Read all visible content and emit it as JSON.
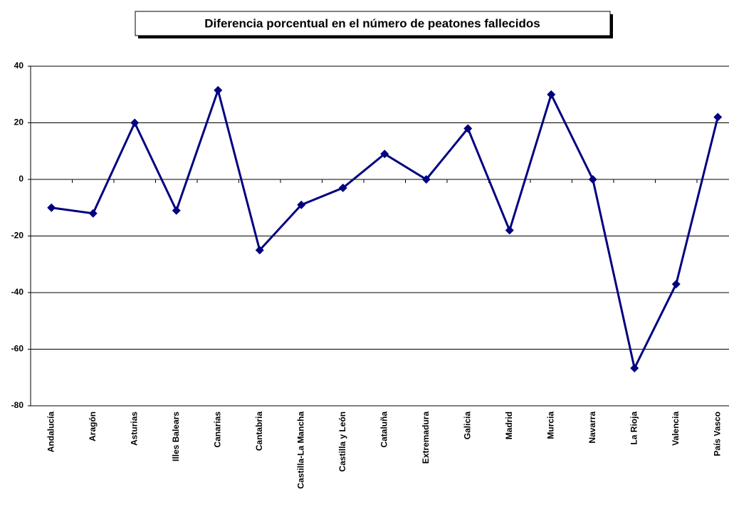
{
  "chart_data": {
    "type": "line",
    "title": "Diferencia porcentual en el número de peatones fallecidos",
    "categories": [
      "Andalucía",
      "Aragón",
      "Asturias",
      "Illes Balears",
      "Canarias",
      "Cantabria",
      "Castilla-La Mancha",
      "Castilla y León",
      "Cataluña",
      "Extremadura",
      "Galicia",
      "Madrid",
      "Murcia",
      "Navarra",
      "La Rioja",
      "Valencia",
      "País Vasco"
    ],
    "values": [
      -10,
      -12,
      20,
      -11,
      31.5,
      -25,
      -9,
      -3,
      9,
      0,
      18,
      -18,
      30,
      0,
      -66.7,
      -37,
      22
    ],
    "color": "#000080",
    "ylim": [
      -80,
      40
    ],
    "yticks": [
      -80,
      -60,
      -40,
      -20,
      0,
      20,
      40
    ],
    "grid": true
  }
}
